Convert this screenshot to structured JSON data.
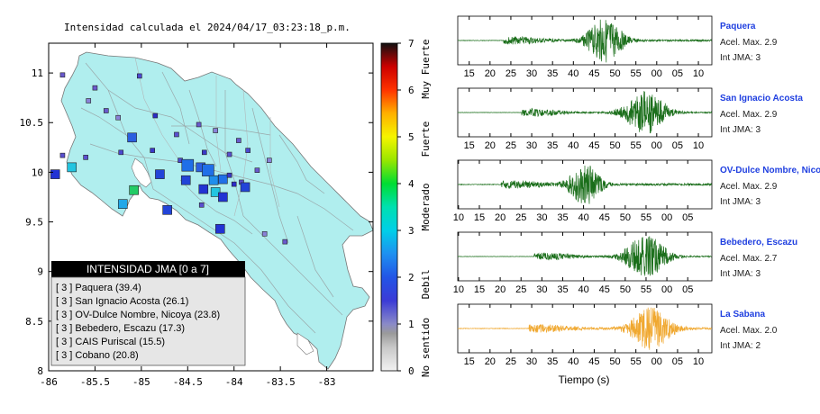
{
  "map": {
    "title": "Intensidad calculada el 2024/04/17_03:23:18_p.m.",
    "xlim": [
      -86,
      -82.5
    ],
    "ylim": [
      8,
      11.3
    ],
    "xticks": [
      -86,
      -85.5,
      -85,
      -84.5,
      -84,
      -83.5,
      -83
    ],
    "yticks": [
      8,
      8.5,
      9,
      9.5,
      10,
      10.5,
      11
    ],
    "xtick_labels": [
      "-86",
      "-85.5",
      "-85",
      "-84.5",
      "-84",
      "-83.5",
      "-83"
    ],
    "ytick_labels": [
      "8",
      "8.5",
      "9",
      "9.5",
      "10",
      "10.5",
      "11"
    ],
    "land_color": "#b0eeee",
    "stations": [
      {
        "lon": -85.85,
        "lat": 10.98,
        "size": "s",
        "color": "#6a5acd"
      },
      {
        "lon": -85.5,
        "lat": 10.85,
        "size": "s",
        "color": "#6a5acd"
      },
      {
        "lon": -85.57,
        "lat": 10.72,
        "size": "s",
        "color": "#8a82d8"
      },
      {
        "lon": -85.38,
        "lat": 10.62,
        "size": "s",
        "color": "#6a5acd"
      },
      {
        "lon": -85.25,
        "lat": 10.55,
        "size": "s",
        "color": "#8a82d8"
      },
      {
        "lon": -85.02,
        "lat": 10.97,
        "size": "s",
        "color": "#4b48d0"
      },
      {
        "lon": -84.85,
        "lat": 10.57,
        "size": "s",
        "color": "#2c2cc8"
      },
      {
        "lon": -84.62,
        "lat": 10.38,
        "size": "s",
        "color": "#5a50d0"
      },
      {
        "lon": -84.38,
        "lat": 10.48,
        "size": "s",
        "color": "#6a5acd"
      },
      {
        "lon": -84.2,
        "lat": 10.42,
        "size": "s",
        "color": "#8a82d8"
      },
      {
        "lon": -83.95,
        "lat": 10.32,
        "size": "s",
        "color": "#6a5acd"
      },
      {
        "lon": -83.85,
        "lat": 10.22,
        "size": "s",
        "color": "#4b48d0"
      },
      {
        "lon": -83.62,
        "lat": 10.12,
        "size": "s",
        "color": "#8a82d8"
      },
      {
        "lon": -85.1,
        "lat": 10.35,
        "size": "m",
        "color": "#2b5fe0"
      },
      {
        "lon": -85.85,
        "lat": 10.17,
        "size": "s",
        "color": "#5a50d0"
      },
      {
        "lon": -85.6,
        "lat": 10.15,
        "size": "s",
        "color": "#5a50d0"
      },
      {
        "lon": -85.22,
        "lat": 10.2,
        "size": "s",
        "color": "#4b48d0"
      },
      {
        "lon": -84.88,
        "lat": 10.22,
        "size": "s",
        "color": "#3a38c8"
      },
      {
        "lon": -84.58,
        "lat": 10.12,
        "size": "s",
        "color": "#4b48d0"
      },
      {
        "lon": -84.32,
        "lat": 10.2,
        "size": "s",
        "color": "#3a38c8"
      },
      {
        "lon": -84.05,
        "lat": 10.18,
        "size": "s",
        "color": "#5a50d0"
      },
      {
        "lon": -83.75,
        "lat": 10.02,
        "size": "s",
        "color": "#6a5acd"
      },
      {
        "lon": -85.93,
        "lat": 9.98,
        "size": "m",
        "color": "#2233d4"
      },
      {
        "lon": -85.75,
        "lat": 10.05,
        "size": "m",
        "color": "#22c5e0"
      },
      {
        "lon": -84.8,
        "lat": 9.98,
        "size": "m",
        "color": "#2244d8"
      },
      {
        "lon": -84.5,
        "lat": 10.07,
        "size": "l",
        "color": "#1f6fe8"
      },
      {
        "lon": -84.36,
        "lat": 10.05,
        "size": "m",
        "color": "#2b5fe0"
      },
      {
        "lon": -84.28,
        "lat": 10.02,
        "size": "l",
        "color": "#1f6fe8"
      },
      {
        "lon": -84.22,
        "lat": 9.92,
        "size": "m",
        "color": "#1f8fec"
      },
      {
        "lon": -84.12,
        "lat": 9.93,
        "size": "m",
        "color": "#1f6fe8"
      },
      {
        "lon": -84.05,
        "lat": 9.97,
        "size": "s",
        "color": "#3a38c8"
      },
      {
        "lon": -84.0,
        "lat": 9.88,
        "size": "s",
        "color": "#2c2cc8"
      },
      {
        "lon": -83.92,
        "lat": 9.9,
        "size": "s",
        "color": "#5a50d0"
      },
      {
        "lon": -84.52,
        "lat": 9.92,
        "size": "m",
        "color": "#2244d8"
      },
      {
        "lon": -84.33,
        "lat": 9.83,
        "size": "m",
        "color": "#2233d4"
      },
      {
        "lon": -84.2,
        "lat": 9.8,
        "size": "m",
        "color": "#22c5e0"
      },
      {
        "lon": -84.12,
        "lat": 9.75,
        "size": "m",
        "color": "#2233d4"
      },
      {
        "lon": -83.88,
        "lat": 9.85,
        "size": "m",
        "color": "#2244d8"
      },
      {
        "lon": -85.08,
        "lat": 9.82,
        "size": "m",
        "color": "#22cc66"
      },
      {
        "lon": -85.2,
        "lat": 9.68,
        "size": "m",
        "color": "#22a8e8"
      },
      {
        "lon": -84.72,
        "lat": 9.62,
        "size": "m",
        "color": "#2244d8"
      },
      {
        "lon": -84.35,
        "lat": 9.67,
        "size": "s",
        "color": "#5a50d0"
      },
      {
        "lon": -84.15,
        "lat": 9.43,
        "size": "m",
        "color": "#2233d4"
      },
      {
        "lon": -83.67,
        "lat": 9.38,
        "size": "s",
        "color": "#8a82d8"
      },
      {
        "lon": -83.45,
        "lat": 9.3,
        "size": "s",
        "color": "#6a5acd"
      }
    ],
    "legend": {
      "title": "INTENSIDAD JMA [0 a 7]",
      "items": [
        "[ 3 ] Paquera (39.4)",
        "[ 3 ] San Ignacio Acosta (26.1)",
        "[ 3 ] OV-Dulce Nombre, Nicoya (23.8)",
        "[ 3 ] Bebedero, Escazu (17.3)",
        "[ 3 ] CAIS Puriscal (15.5)",
        "[ 3 ] Cobano (20.8)"
      ]
    }
  },
  "colorbar": {
    "range": [
      0,
      7
    ],
    "tick_labels": [
      "0",
      "1",
      "2",
      "3",
      "4",
      "5",
      "6",
      "7"
    ],
    "category_labels": [
      {
        "text": "No sentido",
        "center": 0.5
      },
      {
        "text": "Debil",
        "center": 1.85
      },
      {
        "text": "Moderado",
        "center": 3.5
      },
      {
        "text": "Fuerte",
        "center": 4.95
      },
      {
        "text": "Muy Fuerte",
        "center": 6.45
      }
    ],
    "stops": [
      {
        "v": 0,
        "c": "#f2f2f2"
      },
      {
        "v": 0.5,
        "c": "#c8c8c8"
      },
      {
        "v": 0.8,
        "c": "#9a9a9a"
      },
      {
        "v": 1.0,
        "c": "#8a8ac8"
      },
      {
        "v": 1.5,
        "c": "#3b3bd6"
      },
      {
        "v": 2.0,
        "c": "#2255e6"
      },
      {
        "v": 2.5,
        "c": "#1e90f0"
      },
      {
        "v": 3.0,
        "c": "#00cfe8"
      },
      {
        "v": 3.5,
        "c": "#00e0b0"
      },
      {
        "v": 4.0,
        "c": "#00dd33"
      },
      {
        "v": 4.5,
        "c": "#99e600"
      },
      {
        "v": 5.0,
        "c": "#f5f500"
      },
      {
        "v": 5.5,
        "c": "#ffb000"
      },
      {
        "v": 6.0,
        "c": "#ff3300"
      },
      {
        "v": 6.5,
        "c": "#cc0000"
      },
      {
        "v": 7.0,
        "c": "#111111"
      }
    ]
  },
  "waveforms": {
    "xlabel": "Tiempo (s)",
    "panels": [
      {
        "name": "Paquera",
        "acel": "Acel. Max. 2.9",
        "int": "Int JMA: 3",
        "color": "#1a6e1a",
        "onset": 0.18,
        "peak": 0.58,
        "spread": 0.07,
        "amp": 1.0,
        "noise": 0.04,
        "ticks": [
          "15",
          "20",
          "25",
          "30",
          "35",
          "40",
          "45",
          "50",
          "55",
          "00",
          "05",
          "10"
        ],
        "tick_start": 0.045,
        "tick_step": 0.082
      },
      {
        "name": "San Ignacio Acosta",
        "acel": "Acel. Max. 2.9",
        "int": "Int JMA: 3",
        "color": "#1a6e1a",
        "onset": 0.25,
        "peak": 0.74,
        "spread": 0.08,
        "amp": 1.0,
        "noise": 0.03,
        "ticks": [
          "15",
          "20",
          "25",
          "30",
          "35",
          "40",
          "45",
          "50",
          "55",
          "00",
          "05",
          "10"
        ],
        "tick_start": 0.045,
        "tick_step": 0.082
      },
      {
        "name": "OV-Dulce Nombre, Nicoya",
        "acel": "Acel. Max. 2.9",
        "int": "Int JMA: 3",
        "color": "#1a6e1a",
        "onset": 0.17,
        "peak": 0.5,
        "spread": 0.06,
        "amp": 1.0,
        "noise": 0.05,
        "ticks": [
          "10",
          "15",
          "20",
          "25",
          "30",
          "35",
          "40",
          "45",
          "50",
          "55",
          "00",
          "05"
        ],
        "tick_start": 0.003,
        "tick_step": 0.082
      },
      {
        "name": "Bebedero, Escazu",
        "acel": "Acel. Max. 2.7",
        "int": "Int JMA: 3",
        "color": "#1a6e1a",
        "onset": 0.3,
        "peak": 0.74,
        "spread": 0.08,
        "amp": 1.0,
        "noise": 0.03,
        "ticks": [
          "10",
          "15",
          "20",
          "25",
          "30",
          "35",
          "40",
          "45",
          "50",
          "55",
          "00",
          "05"
        ],
        "tick_start": 0.003,
        "tick_step": 0.082
      },
      {
        "name": "La Sabana",
        "acel": "Acel. Max. 2.0",
        "int": "Int JMA: 2",
        "color": "#f0a830",
        "onset": 0.28,
        "peak": 0.76,
        "spread": 0.08,
        "amp": 0.95,
        "noise": 0.05,
        "ticks": [
          "15",
          "20",
          "25",
          "30",
          "35",
          "40",
          "45",
          "50",
          "55",
          "00",
          "05",
          "10"
        ],
        "tick_start": 0.045,
        "tick_step": 0.082
      }
    ]
  }
}
